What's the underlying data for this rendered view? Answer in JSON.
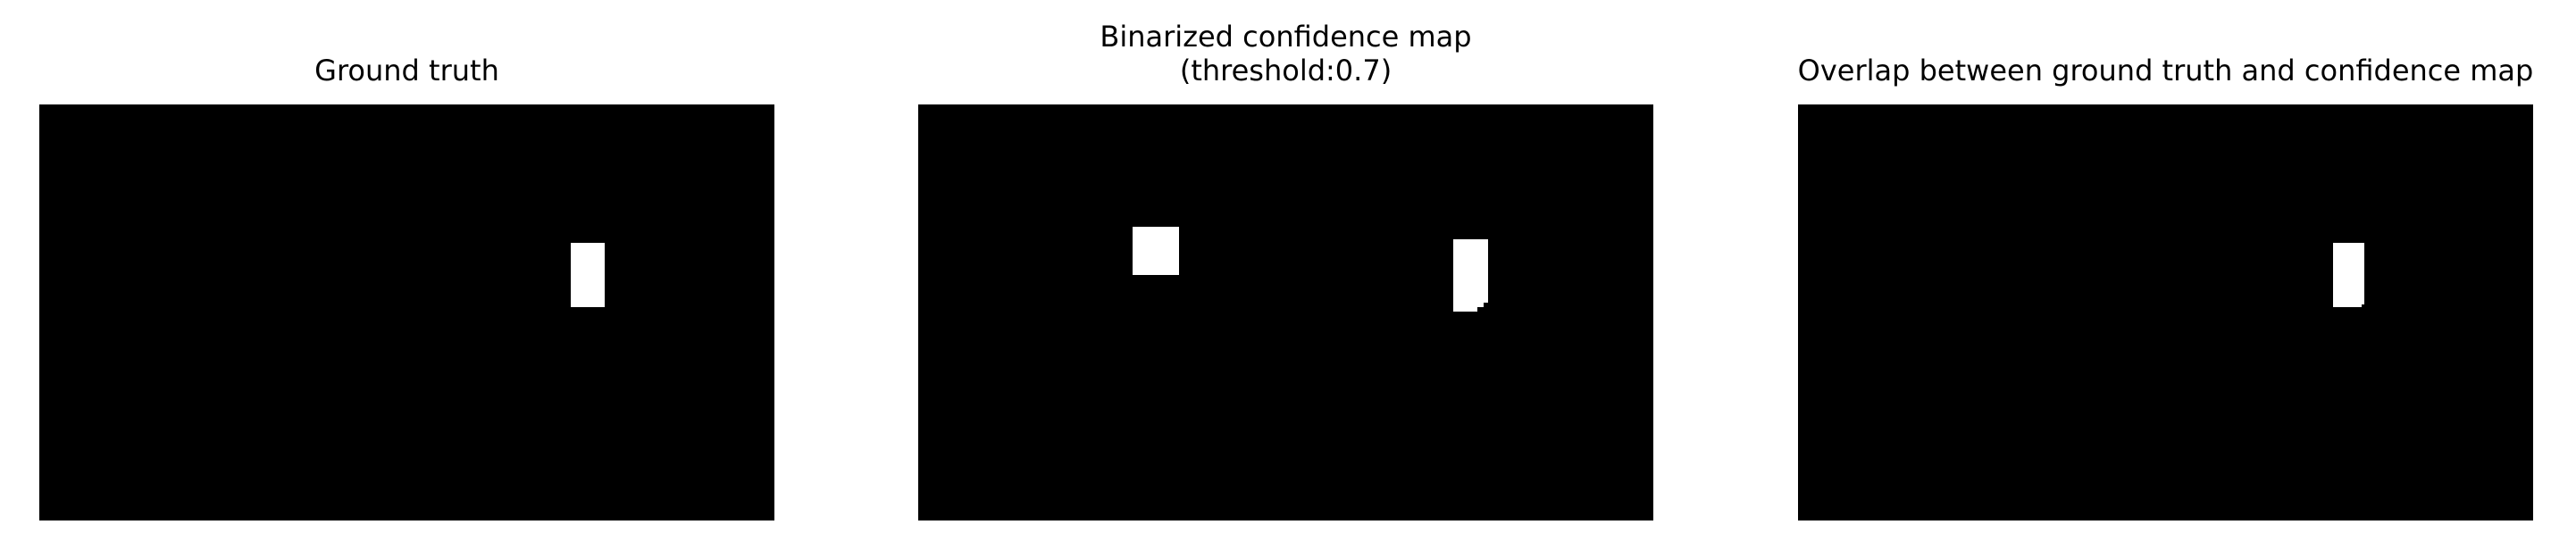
{
  "panels": [
    {
      "title": "Ground truth",
      "image": "binary mask, black background with one white rectangular region"
    },
    {
      "title": "Binarized confidence map\n(threshold:0.7)",
      "image": "binary mask, black background with two white rectangular regions"
    },
    {
      "title": "Overlap between ground truth and confidence map",
      "image": "binary mask, black background with one white rectangular region"
    }
  ],
  "colors": {
    "background": "#ffffff",
    "mask_background": "#000000",
    "mask_foreground": "#ffffff"
  }
}
